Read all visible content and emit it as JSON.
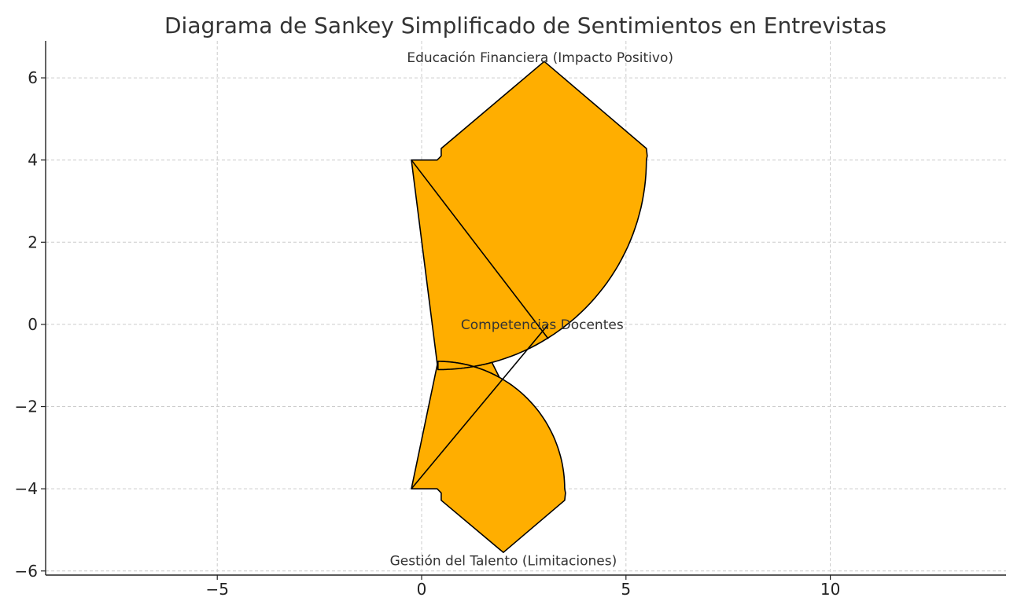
{
  "chart_data": {
    "type": "sankey",
    "title": "Diagrama de Sankey Simplificado de Sentimientos en Entrevistas",
    "xlabel": "",
    "ylabel": "",
    "xlim": [
      -9.2,
      14.3
    ],
    "ylim": [
      -6.1,
      6.9
    ],
    "grid": true,
    "x_ticks": [
      -5,
      0,
      5,
      10
    ],
    "x_tick_labels": [
      "−5",
      "0",
      "5",
      "10"
    ],
    "y_ticks": [
      -6,
      -4,
      -2,
      0,
      2,
      4,
      6
    ],
    "y_tick_labels": [
      "−6",
      "−4",
      "−2",
      "0",
      "2",
      "4",
      "6"
    ],
    "fill_color": "#ffae00",
    "edge_color": "#000000",
    "flows": [
      {
        "label": "Educación Financiera (Impacto Positivo)",
        "label_pos": [
          2.9,
          6.5
        ],
        "polygon": [
          [
            -0.25,
            4.0
          ],
          [
            0.38,
            4.0
          ],
          [
            0.48,
            4.1
          ],
          [
            0.48,
            4.28
          ],
          [
            3.0,
            6.4
          ],
          [
            5.5,
            4.28
          ],
          [
            5.52,
            4.1
          ],
          "ARC_UPPER",
          [
            -0.25,
            4.0
          ]
        ]
      },
      {
        "label": "Competencias Docentes",
        "label_pos": [
          2.95,
          0.0
        ],
        "polygon": []
      },
      {
        "label": "Gestión del Talento (Limitaciones)",
        "label_pos": [
          2.0,
          -5.75
        ],
        "polygon": [
          [
            -0.25,
            -4.0
          ],
          [
            0.38,
            -4.0
          ],
          [
            0.48,
            -4.1
          ],
          [
            0.48,
            -4.28
          ],
          [
            2.0,
            -5.55
          ],
          [
            3.5,
            -4.28
          ],
          [
            3.52,
            -4.1
          ],
          "ARC_LOWER",
          [
            -0.25,
            -4.0
          ]
        ]
      }
    ],
    "arc_upper": {
      "center": [
        0.4,
        4.0
      ],
      "radius": 5.1,
      "from_deg": 0,
      "to_deg": -90
    },
    "arc_lower": {
      "center": [
        0.4,
        -4.0
      ],
      "radius": 3.1,
      "from_deg": 0,
      "to_deg": 90
    }
  }
}
